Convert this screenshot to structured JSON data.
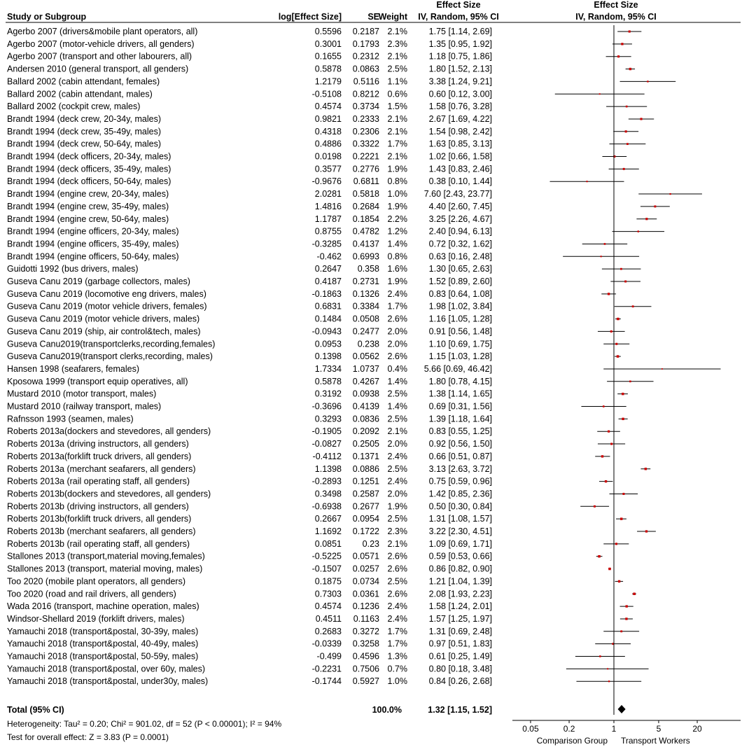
{
  "chart_data": {
    "type": "forest",
    "title": "",
    "headers": {
      "study": "Study or Subgroup",
      "log_es": "log[Effect Size]",
      "se": "SE",
      "weight": "Weight",
      "effect_size_top": "Effect Size",
      "effect_size_method": "IV, Random, 95% CI",
      "plot_top": "Effect Size",
      "plot_method": "IV, Random, 95% CI"
    },
    "studies": [
      {
        "label": "Agerbo 2007 (drivers&mobile plant operators, all)",
        "log_es": "0.5596",
        "se": "0.2187",
        "weight": "2.1%",
        "ci_text": "1.75 [1.14, 2.69]",
        "es": 1.75,
        "lo": 1.14,
        "hi": 2.69
      },
      {
        "label": "Agerbo 2007 (motor-vehicle drivers, all genders)",
        "log_es": "0.3001",
        "se": "0.1793",
        "weight": "2.3%",
        "ci_text": "1.35 [0.95, 1.92]",
        "es": 1.35,
        "lo": 0.95,
        "hi": 1.92
      },
      {
        "label": "Agerbo 2007 (transport and other labourers, all)",
        "log_es": "0.1655",
        "se": "0.2312",
        "weight": "2.1%",
        "ci_text": "1.18 [0.75, 1.86]",
        "es": 1.18,
        "lo": 0.75,
        "hi": 1.86
      },
      {
        "label": "Andersen 2010 (general transport, all genders)",
        "log_es": "0.5878",
        "se": "0.0863",
        "weight": "2.5%",
        "ci_text": "1.80 [1.52, 2.13]",
        "es": 1.8,
        "lo": 1.52,
        "hi": 2.13
      },
      {
        "label": "Ballard 2002 (cabin attendant, females)",
        "log_es": "1.2179",
        "se": "0.5116",
        "weight": "1.1%",
        "ci_text": "3.38 [1.24, 9.21]",
        "es": 3.38,
        "lo": 1.24,
        "hi": 9.21
      },
      {
        "label": "Ballard 2002 (cabin attendant, males)",
        "log_es": "-0.5108",
        "se": "0.8212",
        "weight": "0.6%",
        "ci_text": "0.60 [0.12, 3.00]",
        "es": 0.6,
        "lo": 0.12,
        "hi": 3.0
      },
      {
        "label": "Ballard 2002 (cockpit crew, males)",
        "log_es": "0.4574",
        "se": "0.3734",
        "weight": "1.5%",
        "ci_text": "1.58 [0.76, 3.28]",
        "es": 1.58,
        "lo": 0.76,
        "hi": 3.28
      },
      {
        "label": "Brandt 1994 (deck crew, 20-34y, males)",
        "log_es": "0.9821",
        "se": "0.2333",
        "weight": "2.1%",
        "ci_text": "2.67 [1.69, 4.22]",
        "es": 2.67,
        "lo": 1.69,
        "hi": 4.22
      },
      {
        "label": "Brandt 1994 (deck crew, 35-49y, males)",
        "log_es": "0.4318",
        "se": "0.2306",
        "weight": "2.1%",
        "ci_text": "1.54 [0.98, 2.42]",
        "es": 1.54,
        "lo": 0.98,
        "hi": 2.42
      },
      {
        "label": "Brandt 1994 (deck crew, 50-64y, males)",
        "log_es": "0.4886",
        "se": "0.3322",
        "weight": "1.7%",
        "ci_text": "1.63 [0.85, 3.13]",
        "es": 1.63,
        "lo": 0.85,
        "hi": 3.13
      },
      {
        "label": "Brandt 1994 (deck officers, 20-34y, males)",
        "log_es": "0.0198",
        "se": "0.2221",
        "weight": "2.1%",
        "ci_text": "1.02 [0.66, 1.58]",
        "es": 1.02,
        "lo": 0.66,
        "hi": 1.58
      },
      {
        "label": "Brandt 1994 (deck officers, 35-49y, males)",
        "log_es": "0.3577",
        "se": "0.2776",
        "weight": "1.9%",
        "ci_text": "1.43 [0.83, 2.46]",
        "es": 1.43,
        "lo": 0.83,
        "hi": 2.46
      },
      {
        "label": "Brandt 1994 (deck officers, 50-64y, males)",
        "log_es": "-0.9676",
        "se": "0.6811",
        "weight": "0.8%",
        "ci_text": "0.38 [0.10, 1.44]",
        "es": 0.38,
        "lo": 0.1,
        "hi": 1.44
      },
      {
        "label": "Brandt 1994 (engine crew, 20-34y, males)",
        "log_es": "2.0281",
        "se": "0.5818",
        "weight": "1.0%",
        "ci_text": "7.60 [2.43, 23.77]",
        "es": 7.6,
        "lo": 2.43,
        "hi": 23.77
      },
      {
        "label": "Brandt 1994 (engine crew, 35-49y, males)",
        "log_es": "1.4816",
        "se": "0.2684",
        "weight": "1.9%",
        "ci_text": "4.40 [2.60, 7.45]",
        "es": 4.4,
        "lo": 2.6,
        "hi": 7.45
      },
      {
        "label": "Brandt 1994 (engine crew, 50-64y, males)",
        "log_es": "1.1787",
        "se": "0.1854",
        "weight": "2.2%",
        "ci_text": "3.25 [2.26, 4.67]",
        "es": 3.25,
        "lo": 2.26,
        "hi": 4.67
      },
      {
        "label": "Brandt 1994 (engine officers, 20-34y, males)",
        "log_es": "0.8755",
        "se": "0.4782",
        "weight": "1.2%",
        "ci_text": "2.40 [0.94, 6.13]",
        "es": 2.4,
        "lo": 0.94,
        "hi": 6.13
      },
      {
        "label": "Brandt 1994 (engine officers, 35-49y, males)",
        "log_es": "-0.3285",
        "se": "0.4137",
        "weight": "1.4%",
        "ci_text": "0.72 [0.32, 1.62]",
        "es": 0.72,
        "lo": 0.32,
        "hi": 1.62
      },
      {
        "label": "Brandt 1994 (engine officers, 50-64y, males)",
        "log_es": "-0.462",
        "se": "0.6993",
        "weight": "0.8%",
        "ci_text": "0.63 [0.16, 2.48]",
        "es": 0.63,
        "lo": 0.16,
        "hi": 2.48
      },
      {
        "label": "Guidotti 1992 (bus drivers, males)",
        "log_es": "0.2647",
        "se": "0.358",
        "weight": "1.6%",
        "ci_text": "1.30 [0.65, 2.63]",
        "es": 1.3,
        "lo": 0.65,
        "hi": 2.63
      },
      {
        "label": "Guseva Canu 2019 (garbage collectors, males)",
        "log_es": "0.4187",
        "se": "0.2731",
        "weight": "1.9%",
        "ci_text": "1.52 [0.89, 2.60]",
        "es": 1.52,
        "lo": 0.89,
        "hi": 2.6
      },
      {
        "label": "Guseva Canu 2019 (locomotive eng drivers, males)",
        "log_es": "-0.1863",
        "se": "0.1326",
        "weight": "2.4%",
        "ci_text": "0.83 [0.64, 1.08]",
        "es": 0.83,
        "lo": 0.64,
        "hi": 1.08
      },
      {
        "label": "Guseva Canu 2019 (motor vehicle drivers, females)",
        "log_es": "0.6831",
        "se": "0.3384",
        "weight": "1.7%",
        "ci_text": "1.98 [1.02, 3.84]",
        "es": 1.98,
        "lo": 1.02,
        "hi": 3.84
      },
      {
        "label": "Guseva Canu 2019 (motor vehicle drivers, males)",
        "log_es": "0.1484",
        "se": "0.0508",
        "weight": "2.6%",
        "ci_text": "1.16 [1.05, 1.28]",
        "es": 1.16,
        "lo": 1.05,
        "hi": 1.28
      },
      {
        "label": "Guseva Canu 2019 (ship, air control&tech, males)",
        "log_es": "-0.0943",
        "se": "0.2477",
        "weight": "2.0%",
        "ci_text": "0.91 [0.56, 1.48]",
        "es": 0.91,
        "lo": 0.56,
        "hi": 1.48
      },
      {
        "label": "Guseva Canu2019(transportclerks,recording,females)",
        "log_es": "0.0953",
        "se": "0.238",
        "weight": "2.0%",
        "ci_text": "1.10 [0.69, 1.75]",
        "es": 1.1,
        "lo": 0.69,
        "hi": 1.75
      },
      {
        "label": "Guseva Canu2019(transport clerks,recording, males)",
        "log_es": "0.1398",
        "se": "0.0562",
        "weight": "2.6%",
        "ci_text": "1.15 [1.03, 1.28]",
        "es": 1.15,
        "lo": 1.03,
        "hi": 1.28
      },
      {
        "label": "Hansen 1998 (seafarers, females)",
        "log_es": "1.7334",
        "se": "1.0737",
        "weight": "0.4%",
        "ci_text": "5.66 [0.69, 46.42]",
        "es": 5.66,
        "lo": 0.69,
        "hi": 46.42
      },
      {
        "label": "Kposowa 1999 (transport equip operatives, all)",
        "log_es": "0.5878",
        "se": "0.4267",
        "weight": "1.4%",
        "ci_text": "1.80 [0.78, 4.15]",
        "es": 1.8,
        "lo": 0.78,
        "hi": 4.15
      },
      {
        "label": "Mustard 2010 (motor transport, males)",
        "log_es": "0.3192",
        "se": "0.0938",
        "weight": "2.5%",
        "ci_text": "1.38 [1.14, 1.65]",
        "es": 1.38,
        "lo": 1.14,
        "hi": 1.65
      },
      {
        "label": "Mustard 2010 (railway transport, males)",
        "log_es": "-0.3696",
        "se": "0.4139",
        "weight": "1.4%",
        "ci_text": "0.69 [0.31, 1.56]",
        "es": 0.69,
        "lo": 0.31,
        "hi": 1.56
      },
      {
        "label": "Rafnsson 1993 (seamen, males)",
        "log_es": "0.3293",
        "se": "0.0836",
        "weight": "2.5%",
        "ci_text": "1.39 [1.18, 1.64]",
        "es": 1.39,
        "lo": 1.18,
        "hi": 1.64
      },
      {
        "label": "Roberts 2013a(dockers and stevedores, all genders)",
        "log_es": "-0.1905",
        "se": "0.2092",
        "weight": "2.1%",
        "ci_text": "0.83 [0.55, 1.25]",
        "es": 0.83,
        "lo": 0.55,
        "hi": 1.25
      },
      {
        "label": "Roberts 2013a (driving instructors, all genders)",
        "log_es": "-0.0827",
        "se": "0.2505",
        "weight": "2.0%",
        "ci_text": "0.92 [0.56, 1.50]",
        "es": 0.92,
        "lo": 0.56,
        "hi": 1.5
      },
      {
        "label": "Roberts 2013a(forklift truck drivers, all genders)",
        "log_es": "-0.4112",
        "se": "0.1371",
        "weight": "2.4%",
        "ci_text": "0.66 [0.51, 0.87]",
        "es": 0.66,
        "lo": 0.51,
        "hi": 0.87
      },
      {
        "label": "Roberts 2013a (merchant seafarers, all genders)",
        "log_es": "1.1398",
        "se": "0.0886",
        "weight": "2.5%",
        "ci_text": "3.13 [2.63, 3.72]",
        "es": 3.13,
        "lo": 2.63,
        "hi": 3.72
      },
      {
        "label": "Roberts 2013a (rail operating staff, all genders)",
        "log_es": "-0.2893",
        "se": "0.1251",
        "weight": "2.4%",
        "ci_text": "0.75 [0.59, 0.96]",
        "es": 0.75,
        "lo": 0.59,
        "hi": 0.96
      },
      {
        "label": "Roberts 2013b(dockers and stevedores, all genders)",
        "log_es": "0.3498",
        "se": "0.2587",
        "weight": "2.0%",
        "ci_text": "1.42 [0.85, 2.36]",
        "es": 1.42,
        "lo": 0.85,
        "hi": 2.36
      },
      {
        "label": "Roberts 2013b (driving instructors, all genders)",
        "log_es": "-0.6938",
        "se": "0.2677",
        "weight": "1.9%",
        "ci_text": "0.50 [0.30, 0.84]",
        "es": 0.5,
        "lo": 0.3,
        "hi": 0.84
      },
      {
        "label": "Roberts 2013b(forklift truck drivers, all genders)",
        "log_es": "0.2667",
        "se": "0.0954",
        "weight": "2.5%",
        "ci_text": "1.31 [1.08, 1.57]",
        "es": 1.31,
        "lo": 1.08,
        "hi": 1.57
      },
      {
        "label": "Roberts 2013b (merchant seafarers, all genders)",
        "log_es": "1.1692",
        "se": "0.1722",
        "weight": "2.3%",
        "ci_text": "3.22 [2.30, 4.51]",
        "es": 3.22,
        "lo": 2.3,
        "hi": 4.51
      },
      {
        "label": "Roberts 2013b (rail operating staff, all genders)",
        "log_es": "0.0851",
        "se": "0.23",
        "weight": "2.1%",
        "ci_text": "1.09 [0.69, 1.71]",
        "es": 1.09,
        "lo": 0.69,
        "hi": 1.71
      },
      {
        "label": "Stallones 2013 (transport,material moving,females)",
        "log_es": "-0.5225",
        "se": "0.0571",
        "weight": "2.6%",
        "ci_text": "0.59 [0.53, 0.66]",
        "es": 0.59,
        "lo": 0.53,
        "hi": 0.66
      },
      {
        "label": "Stallones 2013 (transport, material moving, males)",
        "log_es": "-0.1507",
        "se": "0.0257",
        "weight": "2.6%",
        "ci_text": "0.86 [0.82, 0.90]",
        "es": 0.86,
        "lo": 0.82,
        "hi": 0.9
      },
      {
        "label": "Too 2020 (mobile plant operators, all genders)",
        "log_es": "0.1875",
        "se": "0.0734",
        "weight": "2.5%",
        "ci_text": "1.21 [1.04, 1.39]",
        "es": 1.21,
        "lo": 1.04,
        "hi": 1.39
      },
      {
        "label": "Too 2020 (road and rail drivers, all genders)",
        "log_es": "0.7303",
        "se": "0.0361",
        "weight": "2.6%",
        "ci_text": "2.08 [1.93, 2.23]",
        "es": 2.08,
        "lo": 1.93,
        "hi": 2.23
      },
      {
        "label": "Wada 2016 (transport, machine operation, males)",
        "log_es": "0.4574",
        "se": "0.1236",
        "weight": "2.4%",
        "ci_text": "1.58 [1.24, 2.01]",
        "es": 1.58,
        "lo": 1.24,
        "hi": 2.01
      },
      {
        "label": "Windsor-Shellard 2019 (forklift drivers, males)",
        "log_es": "0.4511",
        "se": "0.1163",
        "weight": "2.4%",
        "ci_text": "1.57 [1.25, 1.97]",
        "es": 1.57,
        "lo": 1.25,
        "hi": 1.97
      },
      {
        "label": "Yamauchi 2018 (transport&postal, 30-39y, males)",
        "log_es": "0.2683",
        "se": "0.3272",
        "weight": "1.7%",
        "ci_text": "1.31 [0.69, 2.48]",
        "es": 1.31,
        "lo": 0.69,
        "hi": 2.48
      },
      {
        "label": "Yamauchi 2018 (transport&postal, 40-49y, males)",
        "log_es": "-0.0339",
        "se": "0.3258",
        "weight": "1.7%",
        "ci_text": "0.97 [0.51, 1.83]",
        "es": 0.97,
        "lo": 0.51,
        "hi": 1.83
      },
      {
        "label": "Yamauchi 2018 (transport&postal, 50-59y, males)",
        "log_es": "-0.499",
        "se": "0.4596",
        "weight": "1.3%",
        "ci_text": "0.61 [0.25, 1.49]",
        "es": 0.61,
        "lo": 0.25,
        "hi": 1.49
      },
      {
        "label": "Yamauchi 2018 (transport&postal, over 60y, males)",
        "log_es": "-0.2231",
        "se": "0.7506",
        "weight": "0.7%",
        "ci_text": "0.80 [0.18, 3.48]",
        "es": 0.8,
        "lo": 0.18,
        "hi": 3.48
      },
      {
        "label": "Yamauchi 2018 (transport&postal, under30y, males)",
        "log_es": "-0.1744",
        "se": "0.5927",
        "weight": "1.0%",
        "ci_text": "0.84 [0.26, 2.68]",
        "es": 0.84,
        "lo": 0.26,
        "hi": 2.68
      }
    ],
    "total": {
      "label": "Total (95% CI)",
      "weight": "100.0%",
      "ci_text": "1.32 [1.15, 1.52]",
      "es": 1.32,
      "lo": 1.15,
      "hi": 1.52
    },
    "heterogeneity": "Heterogeneity: Tau² = 0.20; Chi² = 901.02, df = 52 (P < 0.00001); I² = 94%",
    "overall_test": "Test for overall effect: Z = 3.83 (P = 0.0001)",
    "x_scale": "log",
    "x_ticks": [
      0.05,
      0.2,
      1,
      5,
      20
    ],
    "x_tick_labels": [
      "0.05",
      "0.2",
      "1",
      "5",
      "20"
    ],
    "x_range": [
      0.033,
      57
    ],
    "null_line": 1,
    "favours_left": "Comparison Group",
    "favours_right": "Transport Workers",
    "colors": {
      "point": "#cc0000",
      "line": "#000000",
      "diamond": "#000000"
    }
  }
}
